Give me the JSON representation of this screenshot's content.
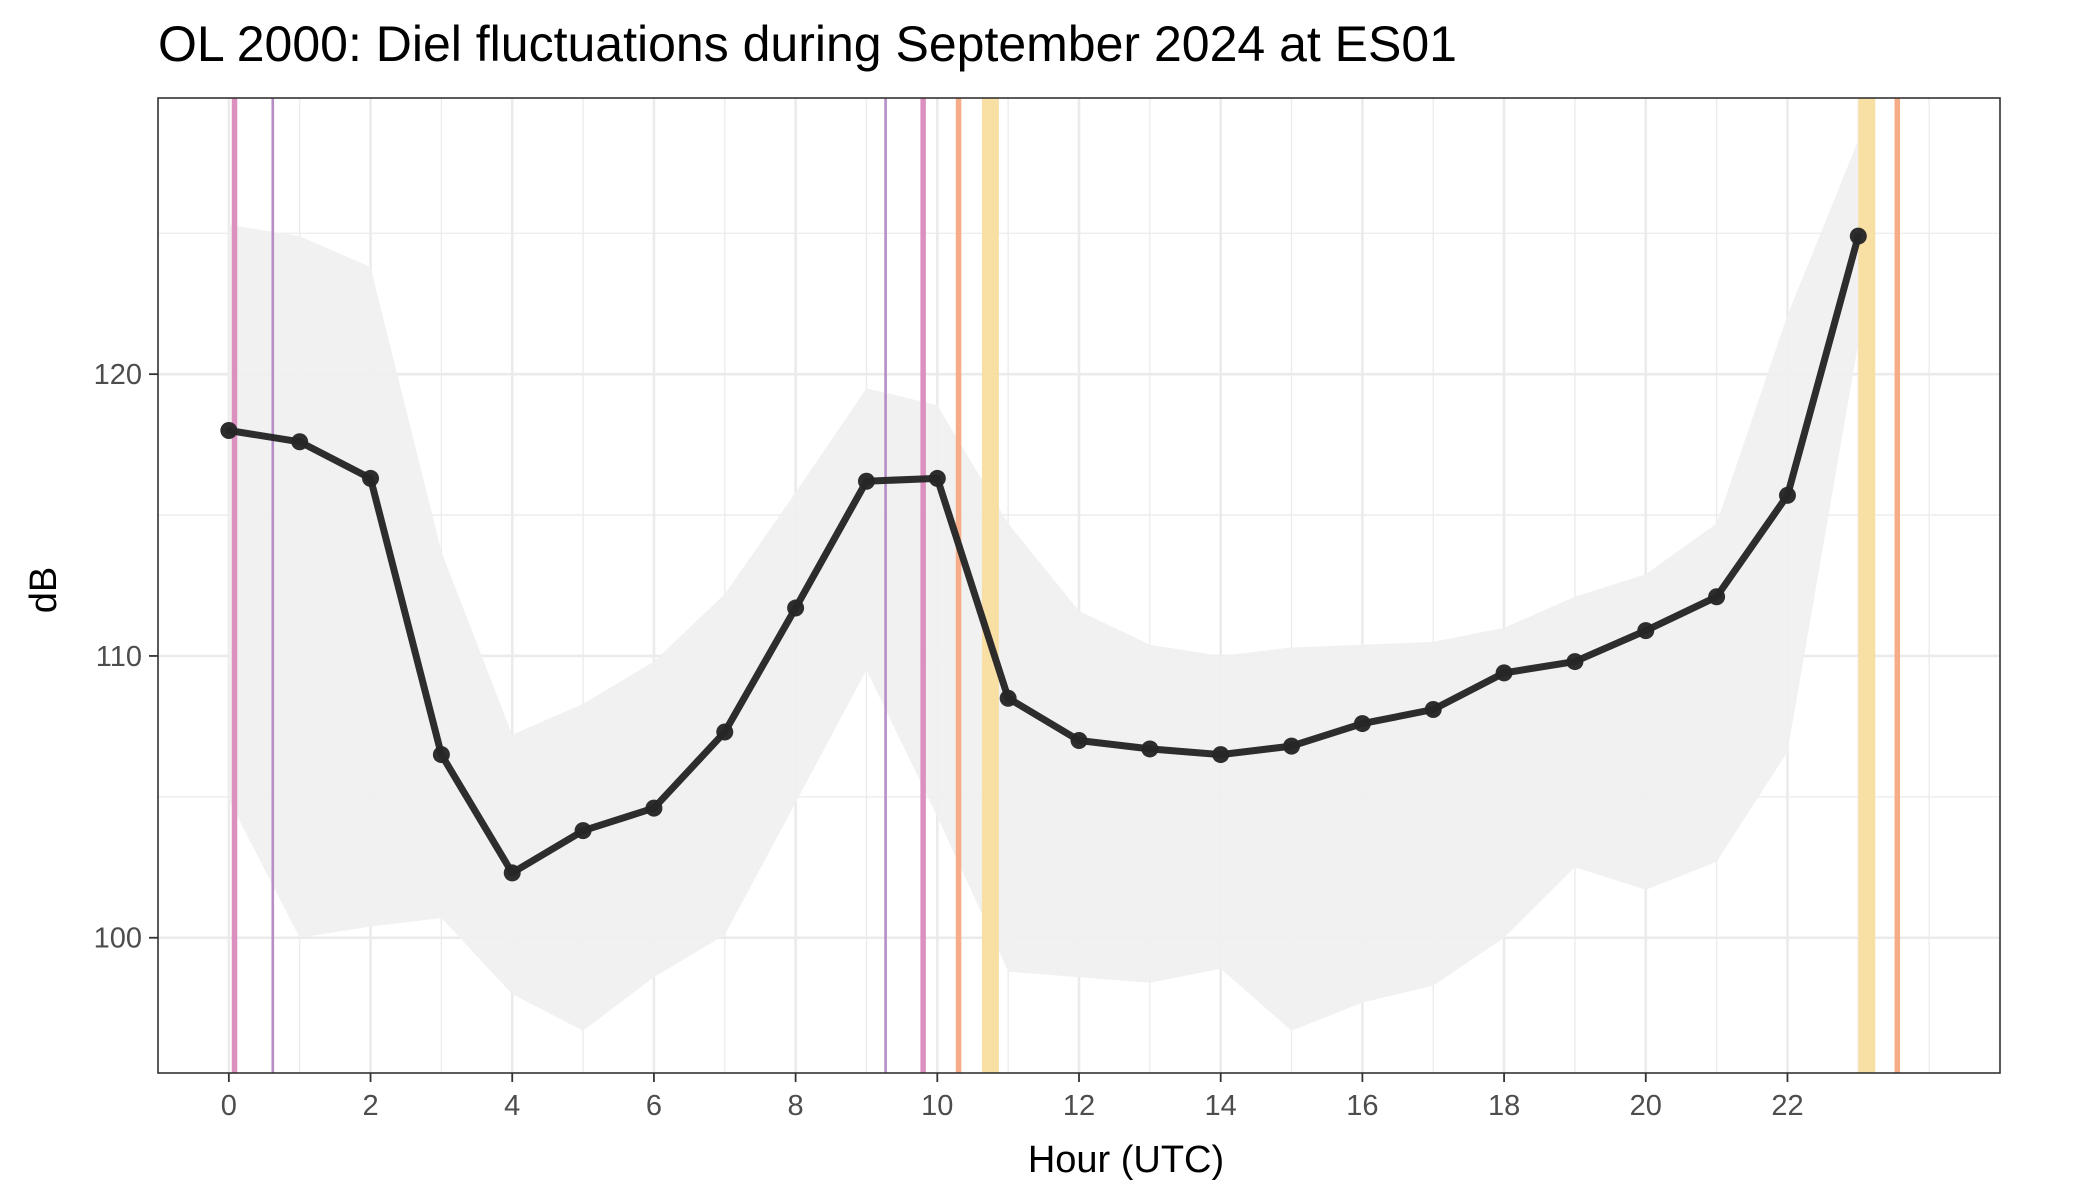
{
  "chart_data": {
    "type": "line",
    "title": "OL 2000: Diel fluctuations during September 2024 at ES01",
    "xlabel": "Hour (UTC)",
    "ylabel": "dB",
    "xlim": [
      -1,
      25
    ],
    "ylim": [
      95.2,
      129.8
    ],
    "x_ticks": [
      0,
      2,
      4,
      6,
      8,
      10,
      12,
      14,
      16,
      18,
      20,
      22
    ],
    "y_ticks": [
      100,
      110,
      120
    ],
    "grid": true,
    "x": [
      0,
      1,
      2,
      3,
      4,
      5,
      6,
      7,
      8,
      9,
      10,
      11,
      12,
      13,
      14,
      15,
      16,
      17,
      18,
      19,
      20,
      21,
      22,
      23
    ],
    "series": [
      {
        "values": [
          118.0,
          117.6,
          116.3,
          106.5,
          102.3,
          103.8,
          104.6,
          107.3,
          111.7,
          116.2,
          116.3,
          108.5,
          107.0,
          106.7,
          106.5,
          106.8,
          107.6,
          108.1,
          109.4,
          109.8,
          110.9,
          112.1,
          115.7,
          124.9
        ],
        "color": "#262626"
      }
    ],
    "band": {
      "upper": [
        125.3,
        124.9,
        123.8,
        113.7,
        107.2,
        108.3,
        109.8,
        112.2,
        115.8,
        119.5,
        118.9,
        114.7,
        111.6,
        110.4,
        110.0,
        110.3,
        110.4,
        110.5,
        111.0,
        112.1,
        112.9,
        114.7,
        122.1,
        128.3
      ],
      "lower": [
        104.9,
        100.0,
        100.4,
        100.7,
        98.0,
        96.7,
        98.6,
        100.1,
        104.8,
        109.5,
        104.3,
        98.8,
        98.6,
        98.4,
        98.9,
        96.7,
        97.7,
        98.3,
        100.0,
        102.5,
        101.7,
        102.7,
        106.6,
        121.1
      ],
      "color": "#f0f0f0"
    },
    "event_lines": [
      {
        "x": 0.08,
        "color": "#d98abd",
        "width": "thick"
      },
      {
        "x": 0.62,
        "color": "#b287c4",
        "width": "thin"
      },
      {
        "x": 9.27,
        "color": "#b287c4",
        "width": "thin"
      },
      {
        "x": 9.8,
        "color": "#d98abd",
        "width": "thick"
      },
      {
        "x": 10.3,
        "color": "#f5a981",
        "width": "thick"
      },
      {
        "x": 10.75,
        "color": "#f8dea0",
        "width": "wide"
      },
      {
        "x": 23.12,
        "color": "#f8dea0",
        "width": "wide"
      },
      {
        "x": 23.55,
        "color": "#f5a981",
        "width": "thick"
      }
    ]
  }
}
